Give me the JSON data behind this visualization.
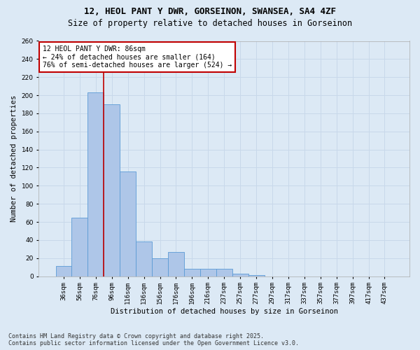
{
  "title_line1": "12, HEOL PANT Y DWR, GORSEINON, SWANSEA, SA4 4ZF",
  "title_line2": "Size of property relative to detached houses in Gorseinon",
  "xlabel": "Distribution of detached houses by size in Gorseinon",
  "ylabel": "Number of detached properties",
  "categories": [
    "36sqm",
    "56sqm",
    "76sqm",
    "96sqm",
    "116sqm",
    "136sqm",
    "156sqm",
    "176sqm",
    "196sqm",
    "216sqm",
    "237sqm",
    "257sqm",
    "277sqm",
    "297sqm",
    "317sqm",
    "337sqm",
    "357sqm",
    "377sqm",
    "397sqm",
    "417sqm",
    "437sqm"
  ],
  "values": [
    11,
    65,
    203,
    190,
    116,
    38,
    20,
    27,
    8,
    8,
    8,
    3,
    1,
    0,
    0,
    0,
    0,
    0,
    0,
    0,
    0
  ],
  "bar_color": "#aec6e8",
  "bar_edge_color": "#5b9bd5",
  "grid_color": "#c8d8ea",
  "background_color": "#dce9f5",
  "vline_color": "#c00000",
  "vline_x_index": 2.5,
  "annotation_text": "12 HEOL PANT Y DWR: 86sqm\n← 24% of detached houses are smaller (164)\n76% of semi-detached houses are larger (524) →",
  "annotation_box_color": "#ffffff",
  "annotation_box_edge_color": "#c00000",
  "ylim": [
    0,
    260
  ],
  "yticks": [
    0,
    20,
    40,
    60,
    80,
    100,
    120,
    140,
    160,
    180,
    200,
    220,
    240,
    260
  ],
  "footnote": "Contains HM Land Registry data © Crown copyright and database right 2025.\nContains public sector information licensed under the Open Government Licence v3.0.",
  "title_fontsize": 9,
  "subtitle_fontsize": 8.5,
  "axis_label_fontsize": 7.5,
  "tick_fontsize": 6.5,
  "annotation_fontsize": 7,
  "footnote_fontsize": 6
}
